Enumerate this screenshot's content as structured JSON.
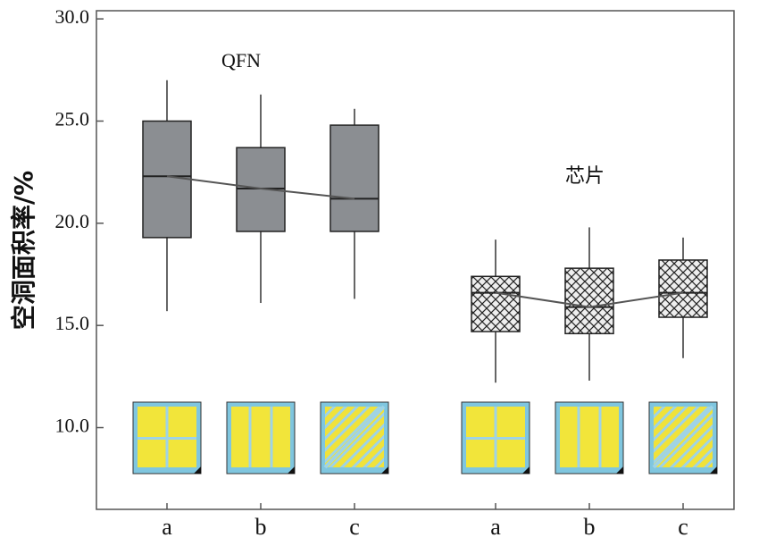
{
  "chart_data": {
    "type": "box",
    "ylabel": "空洞面积率/%",
    "ylim": [
      6,
      30.4
    ],
    "yticks": [
      {
        "value": 10,
        "label": "10.0"
      },
      {
        "value": 15,
        "label": "15.0"
      },
      {
        "value": 20,
        "label": "20.0"
      },
      {
        "value": 25,
        "label": "25.0"
      },
      {
        "value": 30,
        "label": "30.0"
      }
    ],
    "groups": [
      {
        "name": "QFN",
        "color": "#8b8e92",
        "hatch": false,
        "categories": [
          "a",
          "b",
          "c"
        ],
        "boxes": [
          {
            "whisker_low": 15.7,
            "q1": 19.3,
            "median": 22.3,
            "q3": 25.0,
            "whisker_high": 27.0
          },
          {
            "whisker_low": 16.1,
            "q1": 19.6,
            "median": 21.7,
            "q3": 23.7,
            "whisker_high": 26.3
          },
          {
            "whisker_low": 16.3,
            "q1": 19.6,
            "median": 21.2,
            "q3": 24.8,
            "whisker_high": 25.6
          }
        ]
      },
      {
        "name": "芯片",
        "color": "#e6e6e6",
        "hatch": true,
        "categories": [
          "a",
          "b",
          "c"
        ],
        "boxes": [
          {
            "whisker_low": 12.2,
            "q1": 14.7,
            "median": 16.6,
            "q3": 17.4,
            "whisker_high": 19.2
          },
          {
            "whisker_low": 12.3,
            "q1": 14.6,
            "median": 15.9,
            "q3": 17.8,
            "whisker_high": 19.8
          },
          {
            "whisker_low": 13.4,
            "q1": 15.4,
            "median": 16.6,
            "q3": 18.2,
            "whisker_high": 19.3
          }
        ]
      }
    ]
  }
}
